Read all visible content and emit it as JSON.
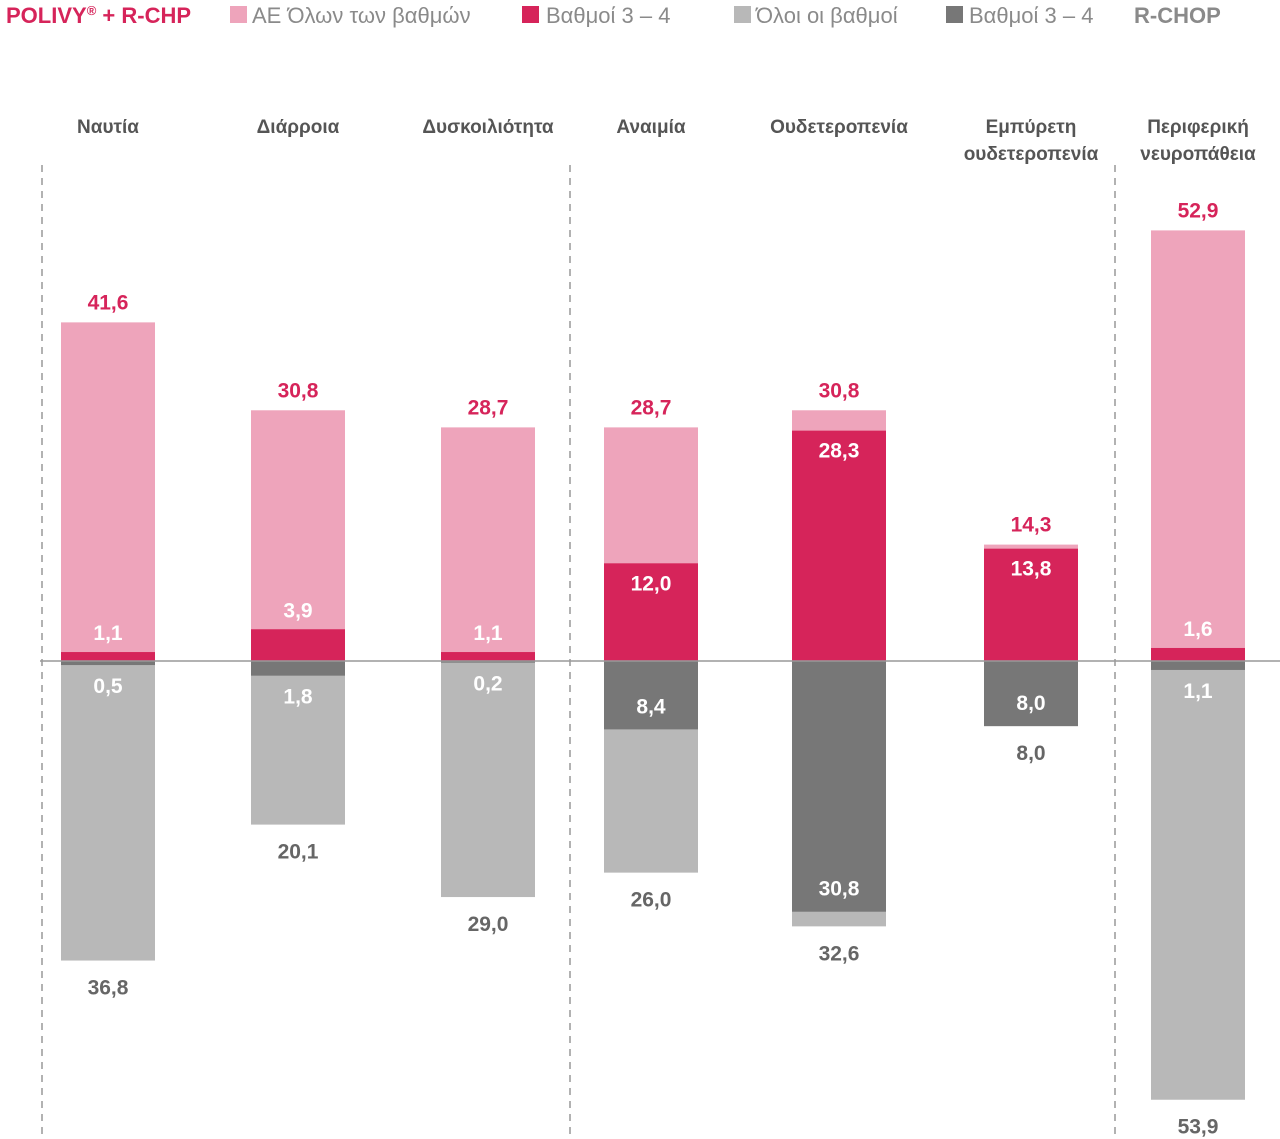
{
  "legend": {
    "group_a": "POLIVY",
    "group_a_mark": "®",
    "group_a_suffix": " + R-CHP",
    "all_grades": "ΑΕ Όλων των βαθμών",
    "grades_3_4": "Βαθμοί 3 – 4",
    "all_grades_b": "Όλοι οι βαθμοί",
    "grades_3_4_b": "Βαθμοί 3 – 4",
    "group_b": "R-CHOP"
  },
  "colors": {
    "pink_light": "#eea4bb",
    "pink_dark": "#d6245a",
    "grey_light": "#b8b8b8",
    "grey_dark": "#777777",
    "value_pink": "#d6245a",
    "value_grey": "#666666",
    "axis": "#999999"
  },
  "chart_data": {
    "type": "bar",
    "categories": [
      [
        "Ναυτία"
      ],
      [
        "Διάρροια"
      ],
      [
        "Δυσκοιλιότητα"
      ],
      [
        "Αναιμία"
      ],
      [
        "Ουδετεροπενία"
      ],
      [
        "Εμπύρετη",
        "ουδετεροπενία"
      ],
      [
        "Περιφερική",
        "νευροπάθεια"
      ]
    ],
    "series": [
      {
        "name": "POLIVY® + R-CHP · ΑΕ Όλων των βαθμών",
        "values": [
          41.6,
          30.8,
          28.7,
          28.7,
          30.8,
          14.3,
          52.9
        ]
      },
      {
        "name": "POLIVY® + R-CHP · Βαθμοί 3 – 4",
        "values": [
          1.1,
          3.9,
          1.1,
          12.0,
          28.3,
          13.8,
          1.6
        ]
      },
      {
        "name": "R-CHOP · Όλοι οι βαθμοί",
        "values": [
          36.8,
          20.1,
          29.0,
          26.0,
          32.6,
          8.0,
          53.9
        ]
      },
      {
        "name": "R-CHOP · Βαθμοί 3 – 4",
        "values": [
          0.5,
          1.8,
          0.2,
          8.4,
          30.8,
          8.0,
          1.1
        ]
      }
    ],
    "value_labels": {
      "polivy_all": [
        "41,6",
        "30,8",
        "28,7",
        "28,7",
        "30,8",
        "14,3",
        "52,9"
      ],
      "polivy_g34": [
        "1,1",
        "3,9",
        "1,1",
        "12,0",
        "28,3",
        "13,8",
        "1,6"
      ],
      "rchop_all": [
        "36,8",
        "20,1",
        "29,0",
        "26,0",
        "32,6",
        "8,0",
        "53,9"
      ],
      "rchop_g34": [
        "0,5",
        "1,8",
        "0,2",
        "8,4",
        "30,8",
        "8,0",
        "1,1"
      ]
    },
    "group_separators_after": [
      0,
      2,
      5
    ],
    "xlabel": "",
    "ylabel": "",
    "grid": false
  }
}
